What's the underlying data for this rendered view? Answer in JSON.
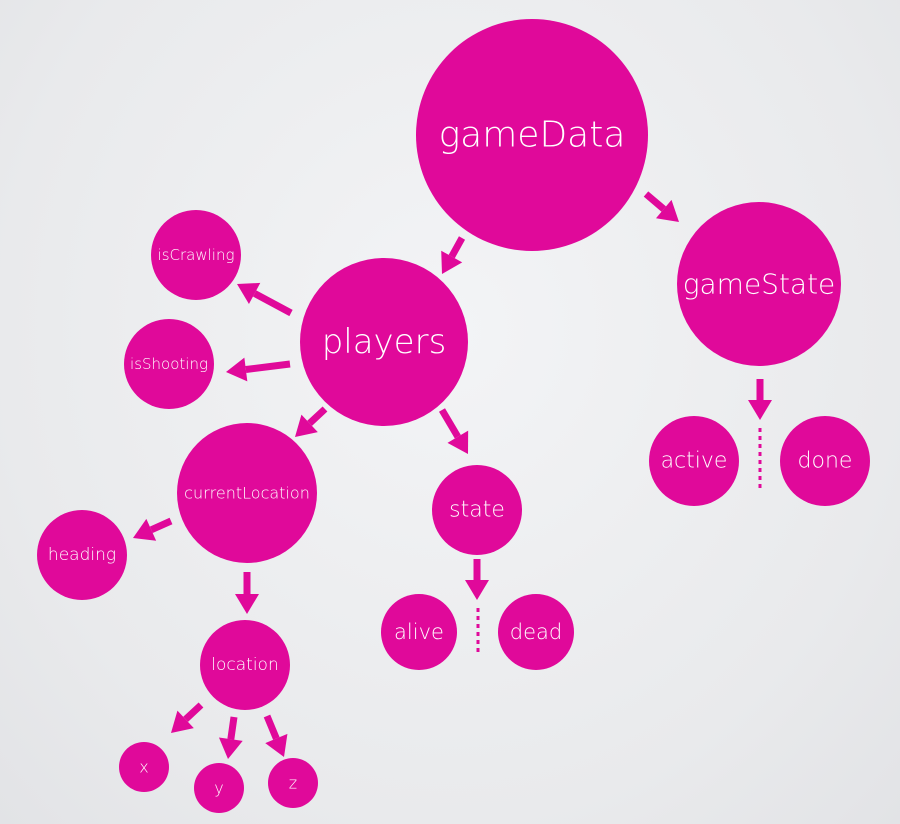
{
  "colors": {
    "node": "#e0099a",
    "background": "#eceef0",
    "text": "#ffffff"
  },
  "nodes": {
    "gameData": "gameData",
    "gameState": "gameState",
    "players": "players",
    "isCrawling": "isCrawling",
    "isShooting": "isShooting",
    "currentLocation": "currentLocation",
    "heading": "heading",
    "state": "state",
    "alive": "alive",
    "dead": "dead",
    "location": "location",
    "x": "x",
    "y": "y",
    "z": "z",
    "active": "active",
    "done": "done"
  },
  "edges": [
    {
      "from": "gameData",
      "to": "players"
    },
    {
      "from": "gameData",
      "to": "gameState"
    },
    {
      "from": "players",
      "to": "isCrawling"
    },
    {
      "from": "players",
      "to": "isShooting"
    },
    {
      "from": "players",
      "to": "currentLocation"
    },
    {
      "from": "players",
      "to": "state"
    },
    {
      "from": "currentLocation",
      "to": "heading"
    },
    {
      "from": "currentLocation",
      "to": "location"
    },
    {
      "from": "state",
      "to": "alive | dead"
    },
    {
      "from": "location",
      "to": "x"
    },
    {
      "from": "location",
      "to": "y"
    },
    {
      "from": "location",
      "to": "z"
    },
    {
      "from": "gameState",
      "to": "active | done"
    }
  ]
}
